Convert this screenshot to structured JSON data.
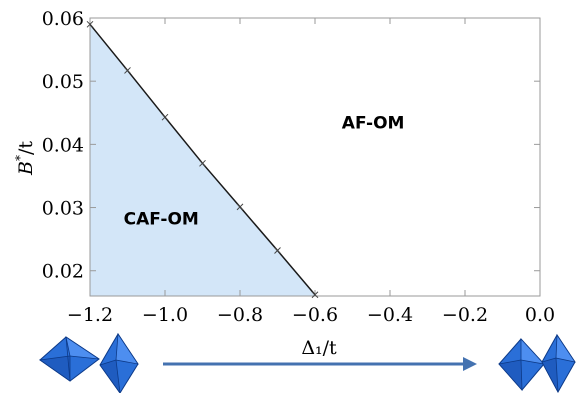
{
  "chart_data": {
    "type": "line",
    "title": "",
    "xlabel": "Δ₁/t",
    "ylabel_main": "B",
    "ylabel_sup": "*",
    "ylabel_tail": "/t",
    "xlim": [
      -1.2,
      0.0
    ],
    "ylim": [
      0.016,
      0.06
    ],
    "x_ticks": [
      -1.2,
      -1.0,
      -0.8,
      -0.6,
      -0.4,
      -0.2,
      0.0
    ],
    "x_tick_labels": [
      "−1.2",
      "−1.0",
      "−0.8",
      "−0.6",
      "−0.4",
      "−0.2",
      "0.0"
    ],
    "y_ticks": [
      0.02,
      0.03,
      0.04,
      0.05,
      0.06
    ],
    "y_tick_labels": [
      "0.02",
      "0.03",
      "0.04",
      "0.05",
      "0.06"
    ],
    "series": [
      {
        "x": [
          -1.2,
          -1.1,
          -1.0,
          -0.9,
          -0.8,
          -0.7,
          -0.6
        ],
        "y": [
          0.059,
          0.0517,
          0.0443,
          0.037,
          0.0301,
          0.0232,
          0.0162
        ]
      }
    ],
    "regions": [
      {
        "label": "CAF-OM",
        "fill": "#d3e6f8",
        "x": -1.01,
        "y": 0.0273
      },
      {
        "label": "AF-OM",
        "fill": "#ffffff",
        "x": -0.445,
        "y": 0.0425
      }
    ],
    "grid": false
  },
  "colors": {
    "shading": "#d3e6f8",
    "line": "#1a1a1a",
    "arrow": "#4472b0",
    "crystal_face": "#2a6fd8",
    "crystal_edge": "#0d3a88"
  },
  "decorations": {
    "left_icon": "octahedra-pair-icon",
    "right_icon": "octahedra-pair-icon",
    "arrow_icon": "right-arrow-icon"
  }
}
